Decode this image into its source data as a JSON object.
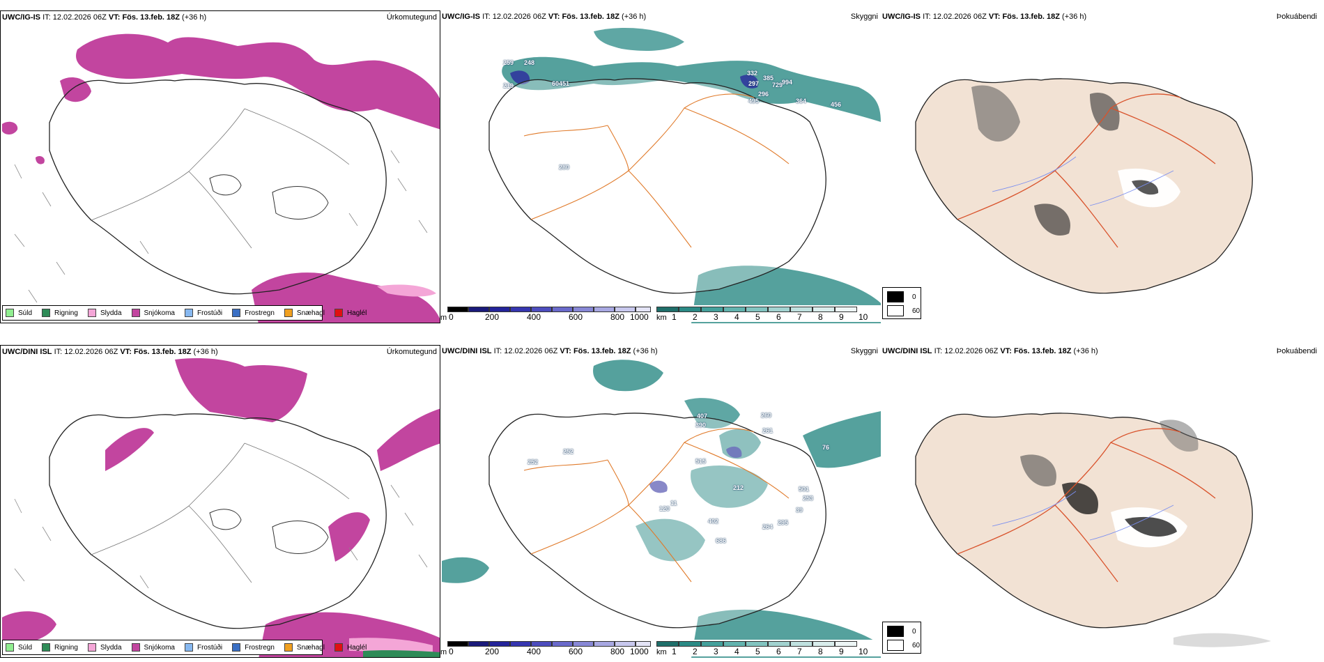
{
  "rows": [
    {
      "model": "UWC/IG-IS",
      "it_label": "IT:",
      "it": "12.02.2026 06Z",
      "vt_label": "VT:",
      "vt": "Fös. 13.feb. 18Z",
      "lead": "(+36 h)",
      "vis_labels": [
        "259",
        "248",
        "219",
        "60451",
        "332",
        "385",
        "297",
        "729",
        "994",
        "296",
        "495",
        "364",
        "456",
        "280"
      ]
    },
    {
      "model": "UWC/DINI ISL",
      "it_label": "IT:",
      "it": "12.02.2026 06Z",
      "vt_label": "VT:",
      "vt": "Fös. 13.feb. 18Z",
      "lead": "(+36 h)",
      "vis_labels": [
        "407",
        "390",
        "260",
        "261",
        "252",
        "515",
        "212",
        "501",
        "253",
        "120",
        "402",
        "264",
        "295",
        "686",
        "39",
        "252",
        "76",
        "11"
      ]
    }
  ],
  "panels": {
    "precip_title": "Úrkomutegund",
    "vis_title": "Skyggni",
    "cloud_title": "Þokuábendi"
  },
  "precip_legend": [
    {
      "label": "Súld",
      "color": "#90ee90"
    },
    {
      "label": "Rigning",
      "color": "#2e8b57"
    },
    {
      "label": "Slydda",
      "color": "#f4a6d7"
    },
    {
      "label": "Snjókoma",
      "color": "#c2459f"
    },
    {
      "label": "Frostúði",
      "color": "#87b8f0"
    },
    {
      "label": "Frostregn",
      "color": "#3a6fc4"
    },
    {
      "label": "Snæhagl",
      "color": "#f0a020"
    },
    {
      "label": "Haglél",
      "color": "#e01010"
    }
  ],
  "ceiling_bar": {
    "unit": "m",
    "ticks": [
      "0",
      "200",
      "400",
      "600",
      "800",
      "1000"
    ]
  },
  "visibility_bar": {
    "unit": "km",
    "ticks": [
      "1",
      "2",
      "3",
      "4",
      "5",
      "6",
      "7",
      "8",
      "9",
      "10"
    ]
  },
  "cloud_legend": {
    "dark": "0",
    "light": "60"
  },
  "colors": {
    "snow": "#c2459f",
    "sleet": "#f4a6d7",
    "rain": "#2e8b57",
    "vis_teal": "#2a8a85",
    "ceiling_blue": "#2a2a9e",
    "roads": "#e07a2a",
    "land": "#f2e2d4"
  }
}
